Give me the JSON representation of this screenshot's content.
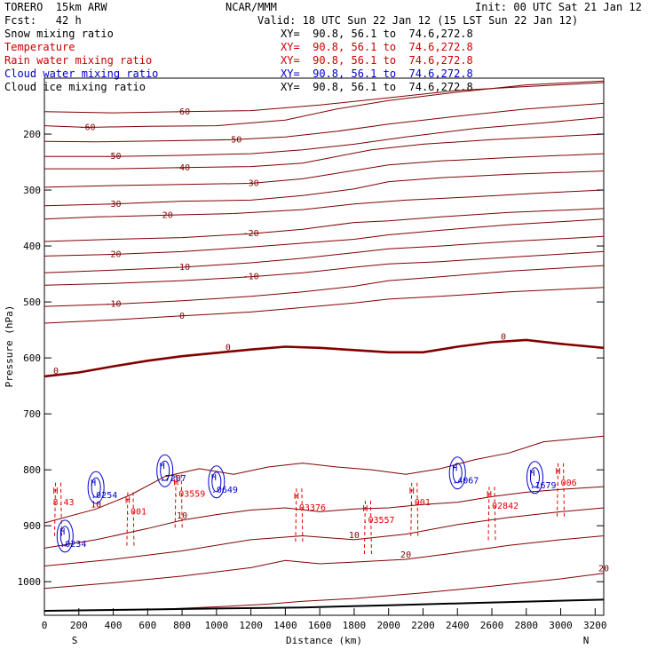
{
  "header": {
    "model": "TORERO  15km ARW",
    "source": "NCAR/MMM",
    "init": "Init: 00 UTC Sat 21 Jan 12",
    "fcst": "Fcst:   42 h",
    "valid": "Valid: 18 UTC Sun 22 Jan 12 (15 LST Sun 22 Jan 12)"
  },
  "fields": [
    {
      "name": "Snow mixing ratio",
      "color": "#000000",
      "xy": "XY=  90.8, 56.1 to  74.6,272.8"
    },
    {
      "name": "Temperature",
      "color": "#cc0000",
      "xy": "XY=  90.8, 56.1 to  74.6,272.8"
    },
    {
      "name": "Rain water mixing ratio",
      "color": "#cc0000",
      "xy": "XY=  90.8, 56.1 to  74.6,272.8"
    },
    {
      "name": "Cloud water mixing ratio",
      "color": "#0000cc",
      "xy": "XY=  90.8, 56.1 to  74.6,272.8"
    },
    {
      "name": "Cloud ice mixing ratio",
      "color": "#000000",
      "xy": "XY=  90.8, 56.1 to  74.6,272.8"
    }
  ],
  "chart_data": {
    "type": "cross-section",
    "xlabel": "Distance (km)",
    "ylabel": "Pressure (hPa)",
    "xlim": [
      0,
      3250
    ],
    "ylim": [
      1060,
      100
    ],
    "x_ticks": [
      0,
      200,
      400,
      600,
      800,
      1000,
      1200,
      1400,
      1600,
      1800,
      2000,
      2200,
      2400,
      2600,
      2800,
      3000,
      3200
    ],
    "y_ticks": [
      200,
      300,
      400,
      500,
      600,
      700,
      800,
      900,
      1000
    ],
    "x_end_labels": {
      "left": "S",
      "right": "N"
    },
    "colors": {
      "temperature": "#800000",
      "rain": "#e00000",
      "cloud_water": "#0000cc",
      "surface": "#000000"
    },
    "temperature_contours": [
      {
        "value": -60,
        "points": [
          [
            0,
            185
          ],
          [
            250,
            188
          ],
          [
            600,
            186
          ],
          [
            1000,
            185
          ],
          [
            1400,
            175
          ],
          [
            1700,
            155
          ],
          [
            2000,
            140
          ],
          [
            2400,
            125
          ],
          [
            2800,
            112
          ],
          [
            3250,
            105
          ]
        ]
      },
      {
        "value": -60,
        "points": [
          [
            0,
            160
          ],
          [
            400,
            162
          ],
          [
            800,
            160
          ],
          [
            1200,
            158
          ],
          [
            1600,
            148
          ],
          [
            2000,
            135
          ],
          [
            2400,
            122
          ],
          [
            2800,
            115
          ],
          [
            3250,
            108
          ]
        ]
      },
      {
        "value": -50,
        "points": [
          [
            0,
            213
          ],
          [
            300,
            214
          ],
          [
            700,
            212
          ],
          [
            1100,
            210
          ],
          [
            1400,
            205
          ],
          [
            1700,
            195
          ],
          [
            2000,
            182
          ],
          [
            2400,
            168
          ],
          [
            2800,
            155
          ],
          [
            3250,
            145
          ]
        ]
      },
      {
        "value": -50,
        "points": [
          [
            0,
            240
          ],
          [
            400,
            240
          ],
          [
            800,
            238
          ],
          [
            1200,
            235
          ],
          [
            1500,
            228
          ],
          [
            1800,
            218
          ],
          [
            2100,
            205
          ],
          [
            2500,
            190
          ],
          [
            2900,
            180
          ],
          [
            3250,
            170
          ]
        ]
      },
      {
        "value": -40,
        "points": [
          [
            0,
            262
          ],
          [
            400,
            262
          ],
          [
            800,
            260
          ],
          [
            1200,
            258
          ],
          [
            1500,
            252
          ],
          [
            1700,
            240
          ],
          [
            1900,
            228
          ],
          [
            2200,
            218
          ],
          [
            2600,
            210
          ],
          [
            3250,
            200
          ]
        ]
      },
      {
        "value": -30,
        "points": [
          [
            0,
            295
          ],
          [
            400,
            292
          ],
          [
            800,
            290
          ],
          [
            1200,
            288
          ],
          [
            1500,
            280
          ],
          [
            1800,
            265
          ],
          [
            2000,
            255
          ],
          [
            2300,
            248
          ],
          [
            2700,
            242
          ],
          [
            3250,
            235
          ]
        ]
      },
      {
        "value": -30,
        "points": [
          [
            0,
            328
          ],
          [
            400,
            325
          ],
          [
            800,
            320
          ],
          [
            1200,
            318
          ],
          [
            1500,
            310
          ],
          [
            1800,
            298
          ],
          [
            2000,
            285
          ],
          [
            2300,
            278
          ],
          [
            2700,
            272
          ],
          [
            3250,
            266
          ]
        ]
      },
      {
        "value": -20,
        "points": [
          [
            0,
            352
          ],
          [
            300,
            348
          ],
          [
            700,
            345
          ],
          [
            1100,
            342
          ],
          [
            1500,
            335
          ],
          [
            1800,
            325
          ],
          [
            2100,
            318
          ],
          [
            2500,
            312
          ],
          [
            2900,
            305
          ],
          [
            3250,
            300
          ]
        ]
      },
      {
        "value": -20,
        "points": [
          [
            0,
            392
          ],
          [
            400,
            388
          ],
          [
            800,
            385
          ],
          [
            1200,
            378
          ],
          [
            1500,
            370
          ],
          [
            1800,
            358
          ],
          [
            2000,
            355
          ],
          [
            2300,
            348
          ],
          [
            2700,
            340
          ],
          [
            3250,
            333
          ]
        ]
      },
      {
        "value": -20,
        "points": [
          [
            0,
            418
          ],
          [
            400,
            415
          ],
          [
            800,
            410
          ],
          [
            1200,
            402
          ],
          [
            1500,
            395
          ],
          [
            1800,
            388
          ],
          [
            2000,
            380
          ],
          [
            2300,
            372
          ],
          [
            2700,
            362
          ],
          [
            3250,
            352
          ]
        ]
      },
      {
        "value": -10,
        "points": [
          [
            0,
            448
          ],
          [
            400,
            443
          ],
          [
            800,
            438
          ],
          [
            1200,
            430
          ],
          [
            1500,
            422
          ],
          [
            1800,
            412
          ],
          [
            2000,
            405
          ],
          [
            2300,
            400
          ],
          [
            2700,
            392
          ],
          [
            3250,
            383
          ]
        ]
      },
      {
        "value": -10,
        "points": [
          [
            0,
            470
          ],
          [
            400,
            467
          ],
          [
            800,
            462
          ],
          [
            1200,
            455
          ],
          [
            1500,
            448
          ],
          [
            1800,
            438
          ],
          [
            2000,
            432
          ],
          [
            2300,
            428
          ],
          [
            2700,
            420
          ],
          [
            3250,
            410
          ]
        ]
      },
      {
        "value": -10,
        "points": [
          [
            0,
            508
          ],
          [
            400,
            504
          ],
          [
            800,
            498
          ],
          [
            1200,
            490
          ],
          [
            1500,
            482
          ],
          [
            1800,
            472
          ],
          [
            2000,
            462
          ],
          [
            2300,
            455
          ],
          [
            2700,
            445
          ],
          [
            3250,
            435
          ]
        ]
      },
      {
        "value": 0,
        "points": [
          [
            0,
            538
          ],
          [
            400,
            532
          ],
          [
            800,
            525
          ],
          [
            1200,
            518
          ],
          [
            1500,
            510
          ],
          [
            1800,
            502
          ],
          [
            2000,
            495
          ],
          [
            2300,
            490
          ],
          [
            2700,
            482
          ],
          [
            3250,
            474
          ]
        ]
      }
    ],
    "freezing_level": {
      "value": 0,
      "points": [
        [
          0,
          633
        ],
        [
          200,
          626
        ],
        [
          400,
          615
        ],
        [
          600,
          605
        ],
        [
          800,
          597
        ],
        [
          1000,
          591
        ],
        [
          1200,
          585
        ],
        [
          1400,
          580
        ],
        [
          1600,
          582
        ],
        [
          1800,
          586
        ],
        [
          2000,
          590
        ],
        [
          2200,
          590
        ],
        [
          2400,
          580
        ],
        [
          2600,
          572
        ],
        [
          2800,
          568
        ],
        [
          3000,
          575
        ],
        [
          3250,
          582
        ]
      ]
    },
    "lower_contours": [
      {
        "value": 10,
        "points": [
          [
            0,
            895
          ],
          [
            300,
            870
          ],
          [
            500,
            845
          ],
          [
            700,
            812
          ],
          [
            900,
            798
          ],
          [
            1100,
            808
          ],
          [
            1300,
            795
          ],
          [
            1500,
            788
          ],
          [
            1700,
            795
          ],
          [
            1900,
            800
          ],
          [
            2100,
            808
          ],
          [
            2300,
            798
          ],
          [
            2500,
            782
          ],
          [
            2700,
            770
          ],
          [
            2900,
            750
          ],
          [
            3250,
            740
          ]
        ]
      },
      {
        "value": 10,
        "points": [
          [
            0,
            940
          ],
          [
            300,
            925
          ],
          [
            600,
            905
          ],
          [
            800,
            890
          ],
          [
            1000,
            880
          ],
          [
            1200,
            872
          ],
          [
            1400,
            868
          ],
          [
            1600,
            875
          ],
          [
            1800,
            870
          ],
          [
            2000,
            868
          ],
          [
            2200,
            862
          ],
          [
            2400,
            858
          ],
          [
            2600,
            848
          ],
          [
            2800,
            840
          ],
          [
            3000,
            835
          ],
          [
            3250,
            830
          ]
        ]
      },
      {
        "value": 10,
        "points": [
          [
            0,
            972
          ],
          [
            400,
            960
          ],
          [
            800,
            945
          ],
          [
            1200,
            925
          ],
          [
            1500,
            918
          ],
          [
            1800,
            925
          ],
          [
            2100,
            915
          ],
          [
            2400,
            898
          ],
          [
            2700,
            885
          ],
          [
            3000,
            875
          ],
          [
            3250,
            868
          ]
        ]
      },
      {
        "value": 20,
        "points": [
          [
            0,
            1012
          ],
          [
            400,
            1002
          ],
          [
            800,
            990
          ],
          [
            1200,
            975
          ],
          [
            1400,
            962
          ],
          [
            1600,
            968
          ],
          [
            1800,
            965
          ],
          [
            2100,
            960
          ],
          [
            2400,
            948
          ],
          [
            2700,
            935
          ],
          [
            3000,
            925
          ],
          [
            3250,
            918
          ]
        ]
      },
      {
        "value": 20,
        "points": [
          [
            600,
            1050
          ],
          [
            1000,
            1045
          ],
          [
            1300,
            1040
          ],
          [
            1500,
            1035
          ],
          [
            1800,
            1030
          ],
          [
            2200,
            1020
          ],
          [
            2600,
            1008
          ],
          [
            3000,
            995
          ],
          [
            3250,
            985
          ]
        ]
      }
    ],
    "surface_pressure": {
      "points": [
        [
          0,
          1052
        ],
        [
          500,
          1050
        ],
        [
          1000,
          1048
        ],
        [
          1500,
          1046
        ],
        [
          2000,
          1042
        ],
        [
          2500,
          1038
        ],
        [
          3000,
          1034
        ],
        [
          3250,
          1032
        ]
      ]
    },
    "cloud_water_maxima": [
      {
        "x": 300,
        "p": 838,
        "label": ".0254"
      },
      {
        "x": 120,
        "p": 925,
        "label": ".0234"
      },
      {
        "x": 700,
        "p": 808,
        "label": ".7287"
      },
      {
        "x": 1000,
        "p": 828,
        "label": ".0649"
      },
      {
        "x": 2400,
        "p": 812,
        "label": ".4067"
      },
      {
        "x": 2850,
        "p": 820,
        "label": ".1679"
      }
    ],
    "rain_maxima": [
      {
        "x": 80,
        "p": 855,
        "label": "8.43"
      },
      {
        "x": 500,
        "p": 872,
        "label": ".001"
      },
      {
        "x": 780,
        "p": 840,
        "label": ".03559"
      },
      {
        "x": 1480,
        "p": 865,
        "label": ".03376"
      },
      {
        "x": 1880,
        "p": 887,
        "label": ".03557"
      },
      {
        "x": 2150,
        "p": 855,
        "label": ".001"
      },
      {
        "x": 2600,
        "p": 862,
        "label": ".02842"
      },
      {
        "x": 3000,
        "p": 820,
        "label": ".006"
      }
    ]
  }
}
